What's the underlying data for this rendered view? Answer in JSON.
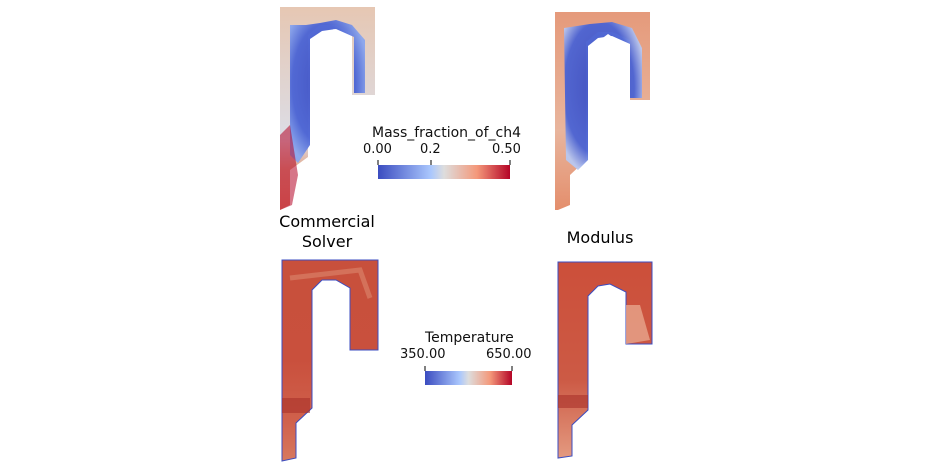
{
  "captions": {
    "left": "Commercial\nSolver",
    "right": "Modulus"
  },
  "colorbars": {
    "ch4": {
      "title": "Mass_fraction_of_ch4",
      "ticks": [
        "0.00",
        "0.2",
        "0.50"
      ],
      "range": [
        0.0,
        0.5
      ]
    },
    "temperature": {
      "title": "Temperature",
      "ticks": [
        "350.00",
        "650.00"
      ],
      "range": [
        350.0,
        650.0
      ]
    }
  },
  "colors": {
    "cool_blue": "#3b4cc0",
    "mid_white": "#dddddd",
    "warm_red": "#b40426",
    "hot_red": "#c0392b",
    "peach": "#e8a080"
  },
  "panels": [
    {
      "field": "Mass_fraction_of_ch4",
      "solver": "Commercial Solver"
    },
    {
      "field": "Mass_fraction_of_ch4",
      "solver": "Modulus"
    },
    {
      "field": "Temperature",
      "solver": "Commercial Solver"
    },
    {
      "field": "Temperature",
      "solver": "Modulus"
    }
  ]
}
